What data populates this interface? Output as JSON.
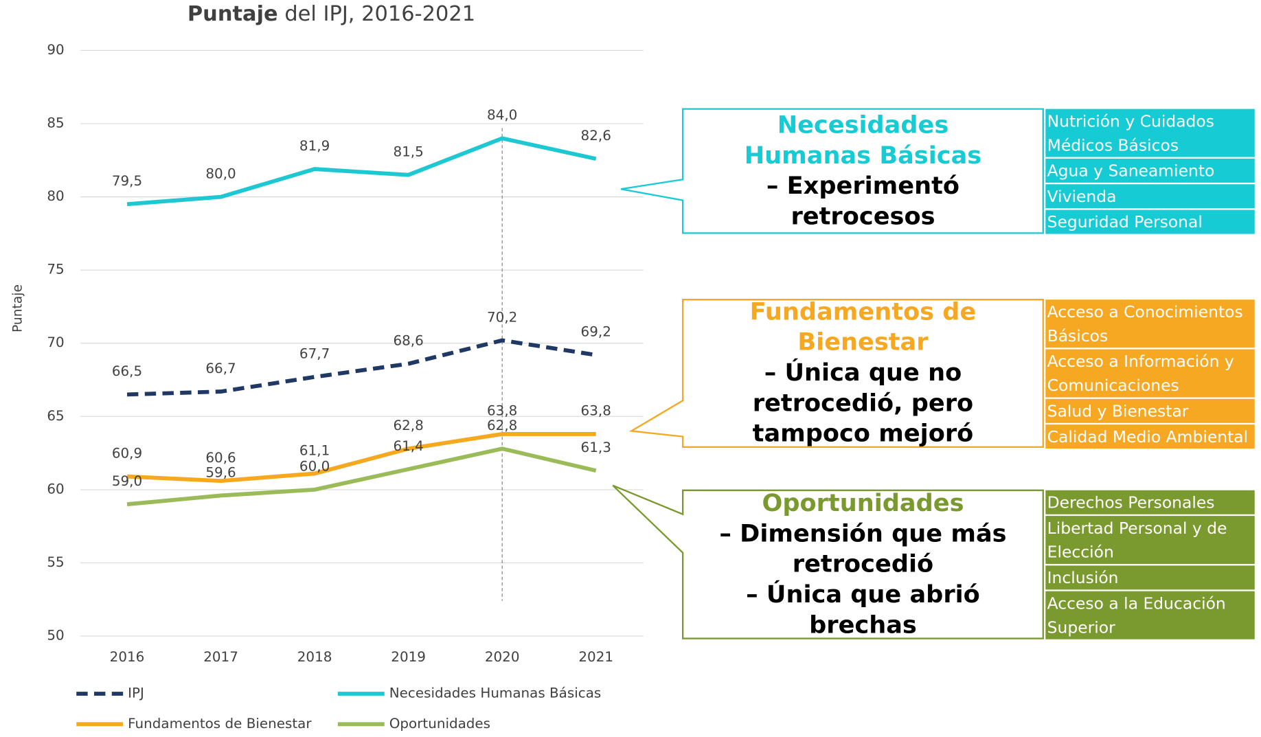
{
  "chart_data": {
    "type": "line",
    "title_bold": "Puntaje",
    "title": " del IPJ, 2016-2021",
    "y_label": "Puntaje",
    "categories": [
      "2016",
      "2017",
      "2018",
      "2019",
      "2020",
      "2021"
    ],
    "ylim": [
      50,
      90
    ],
    "yticks": [
      50,
      55,
      60,
      65,
      70,
      75,
      80,
      85,
      90
    ],
    "grid": true,
    "series": [
      {
        "name": "IPJ",
        "color": "#1f3864",
        "dash": true,
        "values": [
          66.5,
          66.7,
          67.7,
          68.6,
          70.2,
          69.2
        ],
        "value_labels": [
          "66,5",
          "66,7",
          "67,7",
          "68,6",
          "70,2",
          "69,2"
        ]
      },
      {
        "name": "Necesidades Humanas Básicas",
        "color": "#1ec8d2",
        "dash": false,
        "values": [
          79.5,
          80.0,
          81.9,
          81.5,
          84.0,
          82.6
        ],
        "value_labels": [
          "79,5",
          "80,0",
          "81,9",
          "81,5",
          "84,0",
          "82,6"
        ]
      },
      {
        "name": "Fundamentos de Bienestar",
        "color": "#f6a81f",
        "dash": false,
        "values": [
          60.9,
          60.6,
          61.1,
          62.8,
          63.8,
          63.8
        ],
        "value_labels": [
          "60,9",
          "60,6",
          "61,1",
          "62,8",
          "63,8",
          "63,8"
        ]
      },
      {
        "name": "Oportunidades",
        "color": "#9bbb59",
        "dash": false,
        "values": [
          59.0,
          59.6,
          60.0,
          61.4,
          62.8,
          61.3
        ],
        "value_labels": [
          "59,0",
          "59,6",
          "60,0",
          "61,4",
          "62,8",
          "61,3"
        ]
      }
    ],
    "annotations": [
      {
        "color": "#16cbd3",
        "item_color": "#16cbd3",
        "title": "Necesidades Humanas Básicas",
        "body": [
          "– Experimentó retrocesos"
        ],
        "items": [
          "Nutrición y Cuidados Médicos Básicos",
          "Agua y Saneamiento",
          "Vivienda",
          "Seguridad Personal"
        ]
      },
      {
        "color": "#f7a823",
        "item_color": "#f7a823",
        "title": "Fundamentos de Bienestar",
        "body": [
          "– Única que no retrocedió, pero tampoco mejoró"
        ],
        "items": [
          "Acceso a Conocimientos Básicos",
          "Acceso a Información y Comunicaciones",
          "Salud y Bienestar",
          "Calidad Medio Ambiental"
        ]
      },
      {
        "color": "#7a9a2f",
        "item_color": "#7a9a2f",
        "title": "Oportunidades",
        "body": [
          "– Dimensión que más retrocedió",
          "– Única que abrió brechas"
        ],
        "items": [
          "Derechos Personales",
          "Libertad Personal y de Elección",
          "Inclusión",
          "Acceso a la Educación Superior"
        ]
      }
    ]
  }
}
